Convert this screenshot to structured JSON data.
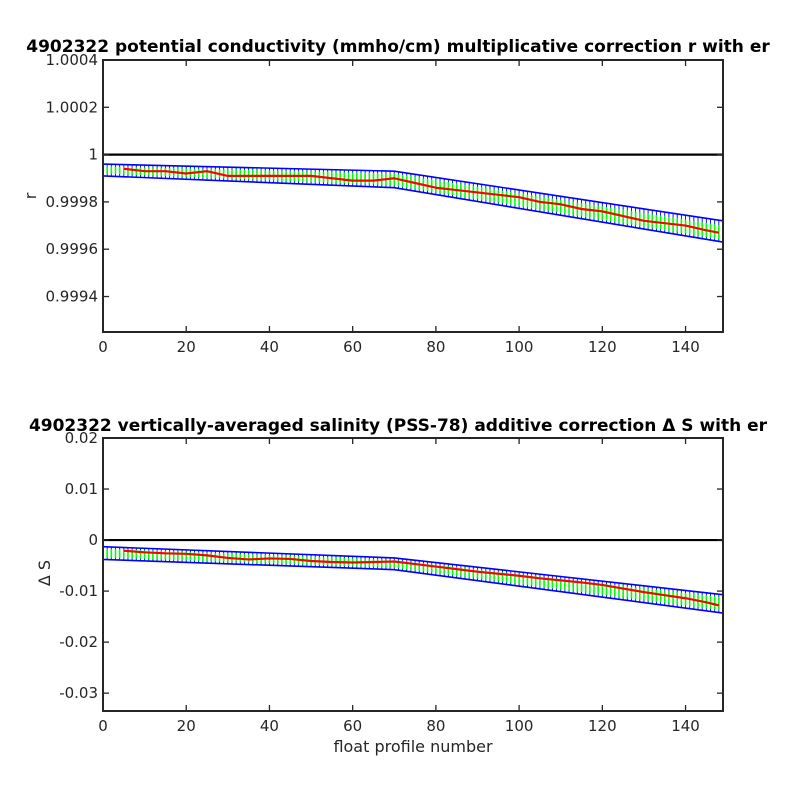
{
  "chart_data": [
    {
      "type": "line",
      "title": "4902322 potential conductivity (mmho/cm) multiplicative correction r with er",
      "xlabel": "",
      "ylabel": "r",
      "xlim": [
        0,
        149
      ],
      "ylim": [
        0.99925,
        1.0004
      ],
      "xticks": [
        0,
        20,
        40,
        60,
        80,
        100,
        120,
        140
      ],
      "xtick_labels": [
        "0",
        "20",
        "40",
        "60",
        "80",
        "100",
        "120",
        "140"
      ],
      "yticks": [
        0.9994,
        0.9996,
        0.9998,
        1.0,
        1.0002,
        1.0004
      ],
      "ytick_labels": [
        "0.9994",
        "0.9996",
        "0.9998",
        "1",
        "1.0002",
        "1.0004"
      ],
      "grid": false,
      "reference_line": {
        "y": 1.0,
        "color": "#000000"
      },
      "series": [
        {
          "role": "fit-error-upper",
          "color": "#0000ff",
          "x": [
            0,
            70,
            149
          ],
          "y": [
            0.99996,
            0.99993,
            0.99972
          ]
        },
        {
          "role": "fit-error-lower",
          "color": "#0000ff",
          "x": [
            0,
            70,
            149
          ],
          "y": [
            0.99991,
            0.99986,
            0.99963
          ]
        },
        {
          "role": "profile-error-band",
          "color": "#00ff00",
          "x": [
            0,
            70,
            149
          ],
          "y_upper": [
            0.99995,
            0.99992,
            0.9997
          ],
          "y_lower": [
            0.99992,
            0.99987,
            0.99964
          ]
        },
        {
          "role": "correction",
          "color": "#ff0000",
          "x": [
            5,
            10,
            15,
            20,
            25,
            30,
            35,
            40,
            45,
            50,
            55,
            60,
            65,
            70,
            75,
            80,
            85,
            90,
            95,
            100,
            105,
            110,
            115,
            120,
            125,
            130,
            135,
            140,
            145,
            148
          ],
          "y": [
            0.99994,
            0.99993,
            0.99993,
            0.99992,
            0.99993,
            0.99991,
            0.99991,
            0.99991,
            0.99991,
            0.99991,
            0.9999,
            0.99989,
            0.99989,
            0.9999,
            0.99988,
            0.99986,
            0.99985,
            0.99984,
            0.99983,
            0.99982,
            0.9998,
            0.99979,
            0.99977,
            0.99976,
            0.99974,
            0.99972,
            0.99971,
            0.9997,
            0.99968,
            0.99967
          ]
        }
      ]
    },
    {
      "type": "line",
      "title": "4902322 vertically-averaged salinity (PSS-78) additive correction Δ S with er",
      "xlabel": "float profile number",
      "ylabel": "Δ S",
      "xlim": [
        0,
        149
      ],
      "ylim": [
        -0.0335,
        0.02
      ],
      "xticks": [
        0,
        20,
        40,
        60,
        80,
        100,
        120,
        140
      ],
      "xtick_labels": [
        "0",
        "20",
        "40",
        "60",
        "80",
        "100",
        "120",
        "140"
      ],
      "yticks": [
        -0.03,
        -0.02,
        -0.01,
        0,
        0.01,
        0.02
      ],
      "ytick_labels": [
        "-0.03",
        "-0.02",
        "-0.01",
        "0",
        "0.01",
        "0.02"
      ],
      "grid": false,
      "reference_line": {
        "y": 0,
        "color": "#000000"
      },
      "series": [
        {
          "role": "fit-error-upper",
          "color": "#0000ff",
          "x": [
            0,
            70,
            149
          ],
          "y": [
            -0.0013,
            -0.0035,
            -0.0107
          ]
        },
        {
          "role": "fit-error-lower",
          "color": "#0000ff",
          "x": [
            0,
            70,
            149
          ],
          "y": [
            -0.0038,
            -0.0058,
            -0.0143
          ]
        },
        {
          "role": "profile-error-band",
          "color": "#00ff00",
          "x": [
            0,
            70,
            149
          ],
          "y_upper": [
            -0.0017,
            -0.0039,
            -0.0112
          ],
          "y_lower": [
            -0.0034,
            -0.0054,
            -0.0138
          ]
        },
        {
          "role": "correction",
          "color": "#ff0000",
          "x": [
            5,
            10,
            15,
            20,
            25,
            30,
            35,
            40,
            45,
            50,
            55,
            60,
            65,
            70,
            75,
            80,
            85,
            90,
            95,
            100,
            105,
            110,
            115,
            120,
            125,
            130,
            135,
            140,
            145,
            148
          ],
          "y": [
            -0.0021,
            -0.0024,
            -0.0026,
            -0.0027,
            -0.003,
            -0.0035,
            -0.0038,
            -0.0036,
            -0.0037,
            -0.0041,
            -0.0043,
            -0.0044,
            -0.0043,
            -0.0042,
            -0.0047,
            -0.0052,
            -0.0057,
            -0.0062,
            -0.0066,
            -0.007,
            -0.0075,
            -0.0079,
            -0.0083,
            -0.0088,
            -0.0095,
            -0.0102,
            -0.0108,
            -0.0114,
            -0.0122,
            -0.0128
          ]
        }
      ]
    }
  ]
}
